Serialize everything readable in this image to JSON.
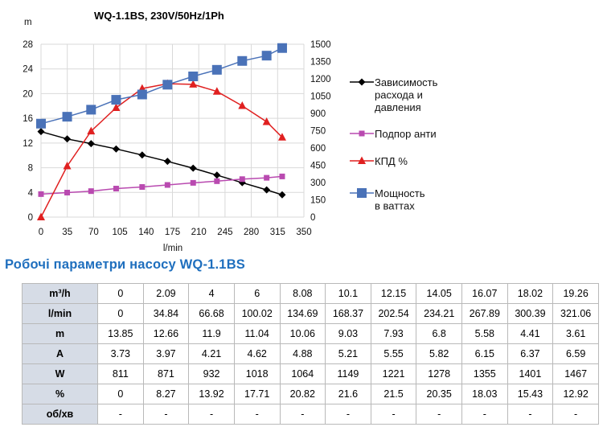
{
  "chart_data": {
    "type": "line",
    "title": "WQ-1.1BS, 230V/50Hz/1Ph",
    "ylabel": "m",
    "xlabel": "l/min",
    "x_ticks": [
      "0",
      "35",
      "70",
      "105",
      "140",
      "175",
      "210",
      "245",
      "280",
      "315",
      "350"
    ],
    "y_left_ticks": [
      "0",
      "4",
      "8",
      "12",
      "16",
      "20",
      "24",
      "28"
    ],
    "y_right_ticks": [
      "0",
      "150",
      "300",
      "450",
      "600",
      "750",
      "900",
      "1050",
      "1200",
      "1350",
      "1500"
    ],
    "xlim": [
      0,
      350
    ],
    "ylim_left": [
      0,
      28
    ],
    "ylim_right": [
      0,
      1500
    ],
    "grid": true,
    "legend_position": "right",
    "x": [
      0,
      34.84,
      66.68,
      100.02,
      134.69,
      168.37,
      202.54,
      234.21,
      267.89,
      300.39,
      321.06
    ],
    "series": [
      {
        "name": "Зависимость расхода и давления",
        "legend_lines": [
          "Зависимость",
          "расхода и",
          "давления"
        ],
        "axis": "left",
        "marker": "diamond",
        "color": "#000000",
        "values": [
          13.85,
          12.66,
          11.9,
          11.04,
          10.06,
          9.03,
          7.93,
          6.8,
          5.58,
          4.41,
          3.61
        ]
      },
      {
        "name": "Подпор анти",
        "legend_lines": [
          "Подпор анти"
        ],
        "axis": "left",
        "marker": "square-small",
        "color": "#b94ab0",
        "values": [
          3.73,
          3.97,
          4.21,
          4.62,
          4.88,
          5.21,
          5.55,
          5.82,
          6.15,
          6.37,
          6.59
        ]
      },
      {
        "name": "КПД %",
        "legend_lines": [
          "КПД %"
        ],
        "axis": "left",
        "marker": "triangle",
        "color": "#e02020",
        "values": [
          0,
          8.27,
          13.92,
          17.71,
          20.82,
          21.6,
          21.5,
          20.35,
          18.03,
          15.43,
          12.92
        ]
      },
      {
        "name": "Мощность в ваттах",
        "legend_lines": [
          "Мощность",
          "в ваттах"
        ],
        "axis": "right",
        "marker": "square",
        "color": "#4a72b8",
        "values": [
          811,
          871,
          932,
          1018,
          1064,
          1149,
          1221,
          1278,
          1355,
          1401,
          1467
        ]
      }
    ]
  },
  "table": {
    "title": "Робочі параметри насосу WQ-1.1BS",
    "rows": [
      {
        "label": "m³/h",
        "values": [
          "0",
          "2.09",
          "4",
          "6",
          "8.08",
          "10.1",
          "12.15",
          "14.05",
          "16.07",
          "18.02",
          "19.26"
        ]
      },
      {
        "label": "l/min",
        "values": [
          "0",
          "34.84",
          "66.68",
          "100.02",
          "134.69",
          "168.37",
          "202.54",
          "234.21",
          "267.89",
          "300.39",
          "321.06"
        ]
      },
      {
        "label": "m",
        "values": [
          "13.85",
          "12.66",
          "11.9",
          "11.04",
          "10.06",
          "9.03",
          "7.93",
          "6.8",
          "5.58",
          "4.41",
          "3.61"
        ]
      },
      {
        "label": "A",
        "values": [
          "3.73",
          "3.97",
          "4.21",
          "4.62",
          "4.88",
          "5.21",
          "5.55",
          "5.82",
          "6.15",
          "6.37",
          "6.59"
        ]
      },
      {
        "label": "W",
        "values": [
          "811",
          "871",
          "932",
          "1018",
          "1064",
          "1149",
          "1221",
          "1278",
          "1355",
          "1401",
          "1467"
        ]
      },
      {
        "label": "%",
        "values": [
          "0",
          "8.27",
          "13.92",
          "17.71",
          "20.82",
          "21.6",
          "21.5",
          "20.35",
          "18.03",
          "15.43",
          "12.92"
        ]
      },
      {
        "label": "об/хв",
        "values": [
          "-",
          "-",
          "-",
          "-",
          "-",
          "-",
          "-",
          "-",
          "-",
          "-",
          "-"
        ]
      }
    ]
  }
}
